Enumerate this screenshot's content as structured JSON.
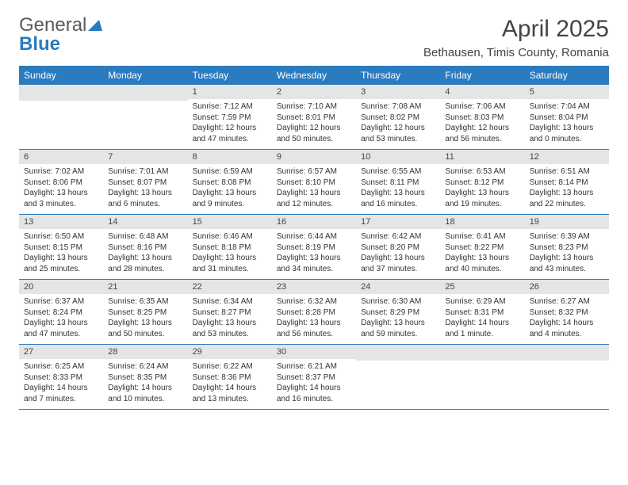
{
  "logo": {
    "text1": "General",
    "text2": "Blue"
  },
  "title": "April 2025",
  "location": "Bethausen, Timis County, Romania",
  "day_headers": [
    "Sunday",
    "Monday",
    "Tuesday",
    "Wednesday",
    "Thursday",
    "Friday",
    "Saturday"
  ],
  "colors": {
    "header_bg": "#2b7bbf",
    "header_text": "#ffffff",
    "daynum_band": "#e5e5e5",
    "divider": "#2b7bbf",
    "body_text": "#333333"
  },
  "weeks": [
    [
      {
        "blank": true
      },
      {
        "blank": true
      },
      {
        "day": "1",
        "sunrise": "Sunrise: 7:12 AM",
        "sunset": "Sunset: 7:59 PM",
        "daylight": "Daylight: 12 hours and 47 minutes."
      },
      {
        "day": "2",
        "sunrise": "Sunrise: 7:10 AM",
        "sunset": "Sunset: 8:01 PM",
        "daylight": "Daylight: 12 hours and 50 minutes."
      },
      {
        "day": "3",
        "sunrise": "Sunrise: 7:08 AM",
        "sunset": "Sunset: 8:02 PM",
        "daylight": "Daylight: 12 hours and 53 minutes."
      },
      {
        "day": "4",
        "sunrise": "Sunrise: 7:06 AM",
        "sunset": "Sunset: 8:03 PM",
        "daylight": "Daylight: 12 hours and 56 minutes."
      },
      {
        "day": "5",
        "sunrise": "Sunrise: 7:04 AM",
        "sunset": "Sunset: 8:04 PM",
        "daylight": "Daylight: 13 hours and 0 minutes."
      }
    ],
    [
      {
        "day": "6",
        "sunrise": "Sunrise: 7:02 AM",
        "sunset": "Sunset: 8:06 PM",
        "daylight": "Daylight: 13 hours and 3 minutes."
      },
      {
        "day": "7",
        "sunrise": "Sunrise: 7:01 AM",
        "sunset": "Sunset: 8:07 PM",
        "daylight": "Daylight: 13 hours and 6 minutes."
      },
      {
        "day": "8",
        "sunrise": "Sunrise: 6:59 AM",
        "sunset": "Sunset: 8:08 PM",
        "daylight": "Daylight: 13 hours and 9 minutes."
      },
      {
        "day": "9",
        "sunrise": "Sunrise: 6:57 AM",
        "sunset": "Sunset: 8:10 PM",
        "daylight": "Daylight: 13 hours and 12 minutes."
      },
      {
        "day": "10",
        "sunrise": "Sunrise: 6:55 AM",
        "sunset": "Sunset: 8:11 PM",
        "daylight": "Daylight: 13 hours and 16 minutes."
      },
      {
        "day": "11",
        "sunrise": "Sunrise: 6:53 AM",
        "sunset": "Sunset: 8:12 PM",
        "daylight": "Daylight: 13 hours and 19 minutes."
      },
      {
        "day": "12",
        "sunrise": "Sunrise: 6:51 AM",
        "sunset": "Sunset: 8:14 PM",
        "daylight": "Daylight: 13 hours and 22 minutes."
      }
    ],
    [
      {
        "day": "13",
        "sunrise": "Sunrise: 6:50 AM",
        "sunset": "Sunset: 8:15 PM",
        "daylight": "Daylight: 13 hours and 25 minutes."
      },
      {
        "day": "14",
        "sunrise": "Sunrise: 6:48 AM",
        "sunset": "Sunset: 8:16 PM",
        "daylight": "Daylight: 13 hours and 28 minutes."
      },
      {
        "day": "15",
        "sunrise": "Sunrise: 6:46 AM",
        "sunset": "Sunset: 8:18 PM",
        "daylight": "Daylight: 13 hours and 31 minutes."
      },
      {
        "day": "16",
        "sunrise": "Sunrise: 6:44 AM",
        "sunset": "Sunset: 8:19 PM",
        "daylight": "Daylight: 13 hours and 34 minutes."
      },
      {
        "day": "17",
        "sunrise": "Sunrise: 6:42 AM",
        "sunset": "Sunset: 8:20 PM",
        "daylight": "Daylight: 13 hours and 37 minutes."
      },
      {
        "day": "18",
        "sunrise": "Sunrise: 6:41 AM",
        "sunset": "Sunset: 8:22 PM",
        "daylight": "Daylight: 13 hours and 40 minutes."
      },
      {
        "day": "19",
        "sunrise": "Sunrise: 6:39 AM",
        "sunset": "Sunset: 8:23 PM",
        "daylight": "Daylight: 13 hours and 43 minutes."
      }
    ],
    [
      {
        "day": "20",
        "sunrise": "Sunrise: 6:37 AM",
        "sunset": "Sunset: 8:24 PM",
        "daylight": "Daylight: 13 hours and 47 minutes."
      },
      {
        "day": "21",
        "sunrise": "Sunrise: 6:35 AM",
        "sunset": "Sunset: 8:25 PM",
        "daylight": "Daylight: 13 hours and 50 minutes."
      },
      {
        "day": "22",
        "sunrise": "Sunrise: 6:34 AM",
        "sunset": "Sunset: 8:27 PM",
        "daylight": "Daylight: 13 hours and 53 minutes."
      },
      {
        "day": "23",
        "sunrise": "Sunrise: 6:32 AM",
        "sunset": "Sunset: 8:28 PM",
        "daylight": "Daylight: 13 hours and 56 minutes."
      },
      {
        "day": "24",
        "sunrise": "Sunrise: 6:30 AM",
        "sunset": "Sunset: 8:29 PM",
        "daylight": "Daylight: 13 hours and 59 minutes."
      },
      {
        "day": "25",
        "sunrise": "Sunrise: 6:29 AM",
        "sunset": "Sunset: 8:31 PM",
        "daylight": "Daylight: 14 hours and 1 minute."
      },
      {
        "day": "26",
        "sunrise": "Sunrise: 6:27 AM",
        "sunset": "Sunset: 8:32 PM",
        "daylight": "Daylight: 14 hours and 4 minutes."
      }
    ],
    [
      {
        "day": "27",
        "sunrise": "Sunrise: 6:25 AM",
        "sunset": "Sunset: 8:33 PM",
        "daylight": "Daylight: 14 hours and 7 minutes."
      },
      {
        "day": "28",
        "sunrise": "Sunrise: 6:24 AM",
        "sunset": "Sunset: 8:35 PM",
        "daylight": "Daylight: 14 hours and 10 minutes."
      },
      {
        "day": "29",
        "sunrise": "Sunrise: 6:22 AM",
        "sunset": "Sunset: 8:36 PM",
        "daylight": "Daylight: 14 hours and 13 minutes."
      },
      {
        "day": "30",
        "sunrise": "Sunrise: 6:21 AM",
        "sunset": "Sunset: 8:37 PM",
        "daylight": "Daylight: 14 hours and 16 minutes."
      },
      {
        "blank": true
      },
      {
        "blank": true
      },
      {
        "blank": true
      }
    ]
  ]
}
